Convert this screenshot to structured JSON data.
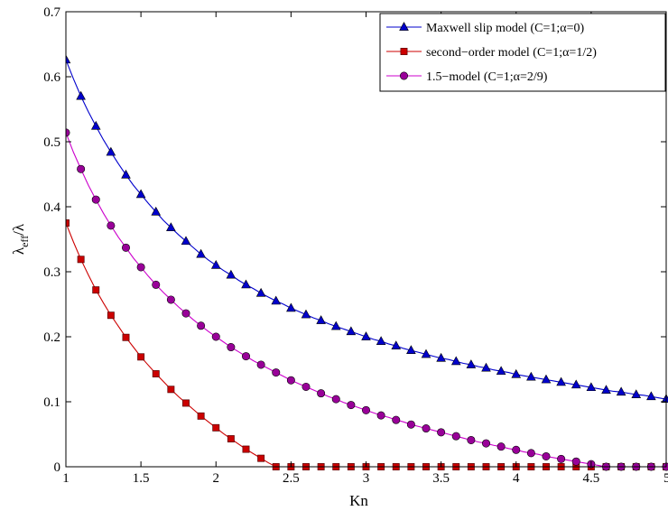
{
  "chart_data": {
    "type": "line",
    "xlabel": "Kn",
    "ylabel": "λ_eff/λ",
    "xlim": [
      1,
      5
    ],
    "ylim": [
      0,
      0.7
    ],
    "xticks": [
      "1",
      "1.5",
      "2",
      "2.5",
      "3",
      "3.5",
      "4",
      "4.5",
      "5"
    ],
    "yticks": [
      "0",
      "0.1",
      "0.2",
      "0.3",
      "0.4",
      "0.5",
      "0.6",
      "0.7"
    ],
    "grid": false,
    "legend_position": "top-right",
    "x": [
      1.0,
      1.05,
      1.1,
      1.15,
      1.2,
      1.25,
      1.3,
      1.35,
      1.4,
      1.45,
      1.5,
      1.55,
      1.6,
      1.65,
      1.7,
      1.75,
      1.8,
      1.85,
      1.9,
      1.95,
      2.0,
      2.05,
      2.1,
      2.15,
      2.2,
      2.25,
      2.3,
      2.35,
      2.4,
      2.45,
      2.5,
      2.55,
      2.6,
      2.65,
      2.7,
      2.75,
      2.8,
      2.85,
      2.9,
      2.95,
      3.0,
      3.05,
      3.1,
      3.15,
      3.2,
      3.25,
      3.3,
      3.35,
      3.4,
      3.45,
      3.5,
      3.55,
      3.6,
      3.65,
      3.7,
      3.75,
      3.8,
      3.85,
      3.9,
      3.95,
      4.0,
      4.05,
      4.1,
      4.15,
      4.2,
      4.25,
      4.3,
      4.35,
      4.4,
      4.45,
      4.5,
      4.55,
      4.6,
      4.65,
      4.7,
      4.75,
      4.8,
      4.85,
      4.9,
      4.95,
      5.0
    ],
    "series": [
      {
        "name": "Maxwell slip model (C=1;α=0)",
        "color": "#0000cc",
        "marker": "triangle",
        "marker_every": 2,
        "values": [
          0.626,
          0.597,
          0.57,
          0.546,
          0.524,
          0.503,
          0.484,
          0.466,
          0.449,
          0.433,
          0.419,
          0.405,
          0.392,
          0.379,
          0.368,
          0.357,
          0.347,
          0.337,
          0.327,
          0.318,
          0.31,
          0.302,
          0.295,
          0.287,
          0.28,
          0.274,
          0.267,
          0.261,
          0.255,
          0.25,
          0.244,
          0.239,
          0.234,
          0.229,
          0.225,
          0.22,
          0.216,
          0.212,
          0.208,
          0.204,
          0.2,
          0.196,
          0.193,
          0.189,
          0.186,
          0.182,
          0.179,
          0.176,
          0.173,
          0.17,
          0.167,
          0.165,
          0.162,
          0.159,
          0.157,
          0.154,
          0.152,
          0.149,
          0.147,
          0.145,
          0.142,
          0.14,
          0.138,
          0.136,
          0.134,
          0.132,
          0.13,
          0.128,
          0.126,
          0.124,
          0.122,
          0.12,
          0.118,
          0.116,
          0.115,
          0.113,
          0.111,
          0.11,
          0.108,
          0.106,
          0.104
        ]
      },
      {
        "name": "second−order model (C=1;α=1/2)",
        "color": "#cc0000",
        "marker": "square",
        "marker_every": 2,
        "values": [
          0.375,
          0.346,
          0.319,
          0.295,
          0.272,
          0.252,
          0.233,
          0.216,
          0.199,
          0.184,
          0.169,
          0.156,
          0.143,
          0.131,
          0.119,
          0.108,
          0.098,
          0.088,
          0.078,
          0.069,
          0.06,
          0.051,
          0.043,
          0.035,
          0.027,
          0.02,
          0.013,
          0.006,
          0.0,
          0.0,
          0.0,
          0.0,
          0.0,
          0.0,
          0.0,
          0.0,
          0.0,
          0.0,
          0.0,
          0.0,
          0.0,
          0.0,
          0.0,
          0.0,
          0.0,
          0.0,
          0.0,
          0.0,
          0.0,
          0.0,
          0.0,
          0.0,
          0.0,
          0.0,
          0.0,
          0.0,
          0.0,
          0.0,
          0.0,
          0.0,
          0.0,
          0.0,
          0.0,
          0.0,
          0.0,
          0.0,
          0.0,
          0.0,
          0.0,
          0.0,
          0.0,
          0.0,
          0.0,
          0.0,
          0.0,
          0.0,
          0.0,
          0.0,
          0.0,
          0.0,
          0.0
        ]
      },
      {
        "name": "1.5−model (C=1;α=2/9)",
        "color": "#cc00cc",
        "marker": "circle",
        "marker_every": 2,
        "markerfill": "#990099",
        "values": [
          0.514,
          0.484,
          0.458,
          0.433,
          0.411,
          0.39,
          0.371,
          0.353,
          0.337,
          0.321,
          0.307,
          0.293,
          0.28,
          0.268,
          0.257,
          0.246,
          0.236,
          0.226,
          0.217,
          0.208,
          0.2,
          0.192,
          0.184,
          0.177,
          0.17,
          0.163,
          0.157,
          0.151,
          0.145,
          0.139,
          0.133,
          0.128,
          0.123,
          0.118,
          0.113,
          0.108,
          0.104,
          0.099,
          0.095,
          0.091,
          0.087,
          0.083,
          0.079,
          0.076,
          0.072,
          0.069,
          0.065,
          0.062,
          0.059,
          0.056,
          0.053,
          0.05,
          0.047,
          0.044,
          0.041,
          0.038,
          0.036,
          0.033,
          0.031,
          0.028,
          0.026,
          0.023,
          0.021,
          0.019,
          0.016,
          0.014,
          0.012,
          0.01,
          0.008,
          0.006,
          0.004,
          0.002,
          0.0,
          0.0,
          0.0,
          0.0,
          0.0,
          0.0,
          0.0,
          0.0,
          0.0
        ]
      }
    ]
  }
}
